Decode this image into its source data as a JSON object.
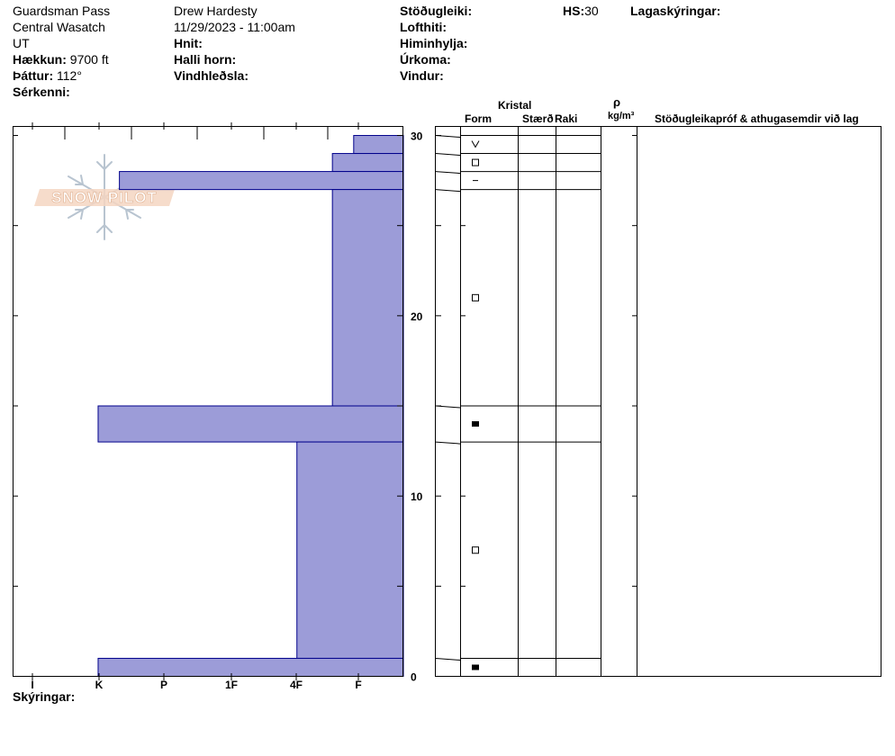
{
  "meta": {
    "location": "Guardsman Pass",
    "range": "Central Wasatch",
    "state": "UT",
    "elevation_label": "Hækkun:",
    "elevation_value": "9700 ft",
    "aspect_label": "Þáttur:",
    "aspect_value": "112°",
    "features_label": "Sérkenni:",
    "observer": "Drew Hardesty",
    "datetime": "11/29/2023 - 11:00am",
    "coords_label": "Hnit:",
    "slope_label": "Halli horn:",
    "wind_loading_label": "Vindhleðsla:",
    "stability_label": "Stöðugleiki:",
    "air_temp_label": "Lofthiti:",
    "sky_label": "Himinhylja:",
    "precip_label": "Úrkoma:",
    "wind_label": "Vindur:",
    "hs_label": "HS:",
    "hs_value": "30",
    "layer_notes_label": "Lagaskýringar:",
    "notes_label": "Skýringar:"
  },
  "logo_text": "SNOW PILOT",
  "table_headers": {
    "crystal": "Kristal",
    "form": "Form",
    "size": "Stærð",
    "moisture": "Raki",
    "rho": "ρ",
    "density_unit": "kg/m³",
    "comments": "Stöðugleikapróf & athugasemdir við lag"
  },
  "colors": {
    "hardness_fill": "#9c9cd8",
    "hardness_stroke": "#00008b"
  },
  "chart_data": {
    "type": "bar",
    "description_axis": "hand hardness profile",
    "x_categories": [
      "I",
      "K",
      "P",
      "1F",
      "4F",
      "F"
    ],
    "y_ticks": [
      0,
      10,
      20,
      30
    ],
    "ylim": [
      0,
      30.5
    ],
    "layers": [
      {
        "bottom": 29,
        "top": 30,
        "hardness": "F-",
        "hardness_index": 0.7,
        "form": "precip"
      },
      {
        "bottom": 28,
        "top": 29,
        "hardness": "F",
        "hardness_index": 1.0,
        "form": "facet"
      },
      {
        "bottom": 27,
        "top": 28,
        "hardness": "1F+",
        "hardness_index": 4.0,
        "form": "surface-hoar"
      },
      {
        "bottom": 15,
        "top": 27,
        "hardness": "F",
        "hardness_index": 1.0,
        "form": "facet"
      },
      {
        "bottom": 13,
        "top": 15,
        "hardness": "1F-",
        "hardness_index": 4.3,
        "form": "melt-freeze"
      },
      {
        "bottom": 1,
        "top": 13,
        "hardness": "F+",
        "hardness_index": 1.5,
        "form": "facet"
      },
      {
        "bottom": 0,
        "top": 1,
        "hardness": "1F-",
        "hardness_index": 4.3,
        "form": "melt-freeze"
      }
    ]
  }
}
